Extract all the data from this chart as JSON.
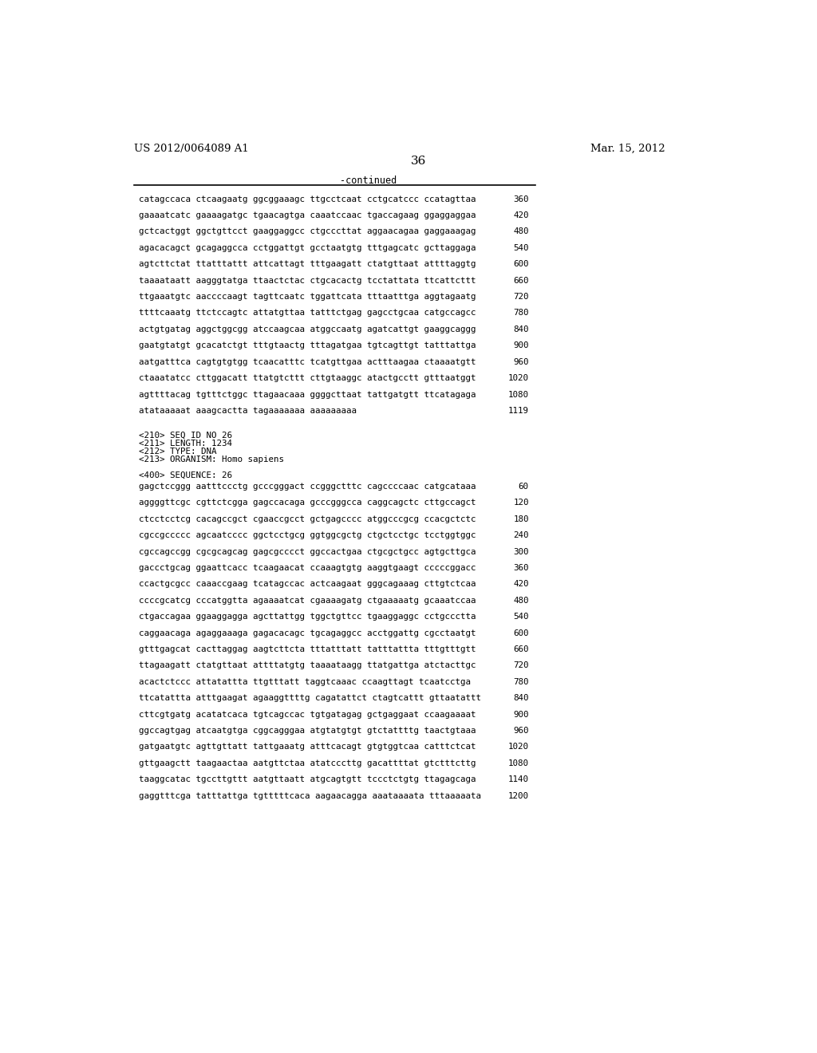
{
  "patent_number": "US 2012/0064089 A1",
  "date": "Mar. 15, 2012",
  "page_number": "36",
  "continued_label": "-continued",
  "background_color": "#ffffff",
  "text_color": "#000000",
  "sequence_lines_top": [
    [
      "catagccaca ctcaagaatg ggcggaaagc ttgcctcaat cctgcatccc ccatagttaa",
      "360"
    ],
    [
      "gaaaatcatc gaaaagatgc tgaacagtga caaatccaac tgaccagaag ggaggaggaa",
      "420"
    ],
    [
      "gctcactggt ggctgttcct gaaggaggcc ctgcccttat aggaacagaa gaggaaagag",
      "480"
    ],
    [
      "agacacagct gcagaggcca cctggattgt gcctaatgtg tttgagcatc gcttaggaga",
      "540"
    ],
    [
      "agtcttctat ttatttattt attcattagt tttgaagatt ctatgttaat attttaggtg",
      "600"
    ],
    [
      "taaaataatt aagggtatga ttaactctac ctgcacactg tcctattata ttcattcttt",
      "660"
    ],
    [
      "ttgaaatgtc aaccccaagt tagttcaatc tggattcata tttaatttga aggtagaatg",
      "720"
    ],
    [
      "ttttcaaatg ttctccagtc attatgttaa tatttctgag gagcctgcaa catgccagcc",
      "780"
    ],
    [
      "actgtgatag aggctggcgg atccaagcaa atggccaatg agatcattgt gaaggcaggg",
      "840"
    ],
    [
      "gaatgtatgt gcacatctgt tttgtaactg tttagatgaa tgtcagttgt tatttattga",
      "900"
    ],
    [
      "aatgatttca cagtgtgtgg tcaacatttc tcatgttgaa actttaagaa ctaaaatgtt",
      "960"
    ],
    [
      "ctaaatatcc cttggacatt ttatgtcttt cttgtaaggc atactgcctt gtttaatggt",
      "1020"
    ],
    [
      "agttttacag tgtttctggc ttagaacaaa ggggcttaat tattgatgtt ttcatagaga",
      "1080"
    ],
    [
      "atataaaaat aaagcactta tagaaaaaaa aaaaaaaaa",
      "1119"
    ]
  ],
  "seq_info_lines": [
    "<210> SEQ ID NO 26",
    "<211> LENGTH: 1234",
    "<212> TYPE: DNA",
    "<213> ORGANISM: Homo sapiens",
    "",
    "<400> SEQUENCE: 26"
  ],
  "sequence_lines_bottom": [
    [
      "gagctccggg aatttccctg gcccgggact ccgggctttc cagccccaac catgcataaa",
      "60"
    ],
    [
      "aggggttcgc cgttctcgga gagccacaga gcccgggcca caggcagctc cttgccagct",
      "120"
    ],
    [
      "ctcctcctcg cacagccgct cgaaccgcct gctgagcccc atggcccgcg ccacgctctc",
      "180"
    ],
    [
      "cgccgccccc agcaatcccc ggctcctgcg ggtggcgctg ctgctcctgc tcctggtggc",
      "240"
    ],
    [
      "cgccagccgg cgcgcagcag gagcgcccct ggccactgaa ctgcgctgcc agtgcttgca",
      "300"
    ],
    [
      "gaccctgcag ggaattcacc tcaagaacat ccaaagtgtg aaggtgaagt cccccggacc",
      "360"
    ],
    [
      "ccactgcgcc caaaccgaag tcatagccac actcaagaat gggcagaaag cttgtctcaa",
      "420"
    ],
    [
      "ccccgcatcg cccatggtta agaaaatcat cgaaaagatg ctgaaaaatg gcaaatccaa",
      "480"
    ],
    [
      "ctgaccagaa ggaaggagga agcttattgg tggctgttcc tgaaggaggc cctgccctta",
      "540"
    ],
    [
      "caggaacaga agaggaaaga gagacacagc tgcagaggcc acctggattg cgcctaatgt",
      "600"
    ],
    [
      "gtttgagcat cacttaggag aagtcttcta tttatttatt tatttattta tttgtttgtt",
      "660"
    ],
    [
      "ttagaagatt ctatgttaat attttatgtg taaaataagg ttatgattga atctacttgc",
      "720"
    ],
    [
      "acactctccc attatattta ttgtttatt taggtcaaac ccaagttagt tcaatcctga",
      "780"
    ],
    [
      "ttcatattta atttgaagat agaaggttttg cagatattct ctagtcattt gttaatattt",
      "840"
    ],
    [
      "cttcgtgatg acatatcaca tgtcagccac tgtgatagag gctgaggaat ccaagaaaat",
      "900"
    ],
    [
      "ggccagtgag atcaatgtga cggcagggaa atgtatgtgt gtctattttg taactgtaaa",
      "960"
    ],
    [
      "gatgaatgtc agttgttatt tattgaaatg atttcacagt gtgtggtcaa catttctcat",
      "1020"
    ],
    [
      "gttgaagctt taagaactaa aatgttctaa atatcccttg gacattttat gtctttcttg",
      "1080"
    ],
    [
      "taaggcatac tgccttgttt aatgttaatt atgcagtgtt tccctctgtg ttagagcaga",
      "1140"
    ],
    [
      "gaggtttcga tatttattga tgtttttcaca aagaacagga aaataaaata tttaaaaata",
      "1200"
    ]
  ]
}
